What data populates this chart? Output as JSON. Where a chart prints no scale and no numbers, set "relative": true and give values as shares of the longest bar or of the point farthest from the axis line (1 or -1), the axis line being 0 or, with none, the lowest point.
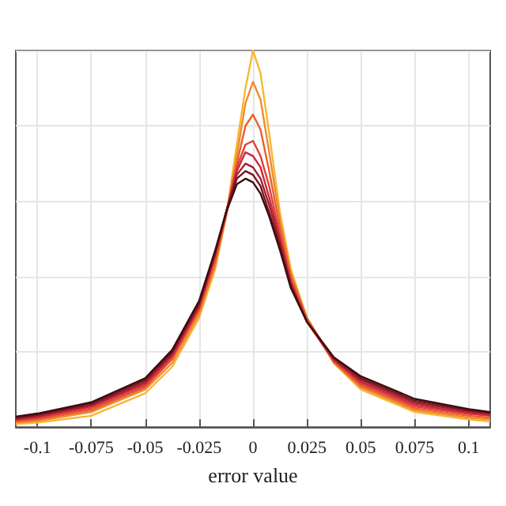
{
  "chart_data": {
    "type": "line",
    "xlabel": "error value",
    "relative": true,
    "grid": true,
    "marker": "none",
    "line_style": "solid",
    "xlim": [
      -0.11,
      0.11
    ],
    "xticks": [
      -0.1,
      -0.075,
      -0.05,
      -0.025,
      0,
      0.025,
      0.05,
      0.075,
      0.1
    ],
    "x": [
      -0.11,
      -0.1,
      -0.075,
      -0.05,
      -0.0375,
      -0.025,
      -0.0175,
      -0.0125,
      -0.0075,
      -0.0035,
      0,
      0.0035,
      0.0075,
      0.0125,
      0.0175,
      0.025,
      0.0375,
      0.05,
      0.075,
      0.1,
      0.11
    ],
    "series": [
      {
        "color": "#f7b733",
        "values": [
          0.008,
          0.012,
          0.03,
          0.09,
          0.16,
          0.29,
          0.42,
          0.56,
          0.75,
          0.9,
          1.0,
          0.94,
          0.78,
          0.57,
          0.42,
          0.29,
          0.17,
          0.1,
          0.04,
          0.02,
          0.015
        ]
      },
      {
        "color": "#f28a2e",
        "values": [
          0.012,
          0.016,
          0.04,
          0.1,
          0.17,
          0.3,
          0.43,
          0.56,
          0.72,
          0.86,
          0.917,
          0.87,
          0.73,
          0.55,
          0.41,
          0.29,
          0.17,
          0.105,
          0.045,
          0.025,
          0.02
        ]
      },
      {
        "color": "#e8602c",
        "values": [
          0.015,
          0.02,
          0.045,
          0.105,
          0.18,
          0.31,
          0.44,
          0.56,
          0.7,
          0.8,
          0.83,
          0.79,
          0.68,
          0.53,
          0.4,
          0.29,
          0.175,
          0.11,
          0.05,
          0.03,
          0.025
        ]
      },
      {
        "color": "#e0403a",
        "values": [
          0.018,
          0.024,
          0.05,
          0.11,
          0.185,
          0.315,
          0.45,
          0.57,
          0.69,
          0.75,
          0.76,
          0.72,
          0.64,
          0.51,
          0.39,
          0.28,
          0.175,
          0.115,
          0.055,
          0.035,
          0.03
        ]
      },
      {
        "color": "#c8283a",
        "values": [
          0.02,
          0.027,
          0.055,
          0.115,
          0.19,
          0.32,
          0.46,
          0.57,
          0.68,
          0.73,
          0.72,
          0.69,
          0.61,
          0.5,
          0.385,
          0.28,
          0.18,
          0.12,
          0.06,
          0.038,
          0.032
        ]
      },
      {
        "color": "#a01e30",
        "values": [
          0.022,
          0.03,
          0.058,
          0.12,
          0.195,
          0.325,
          0.46,
          0.57,
          0.67,
          0.7,
          0.69,
          0.66,
          0.59,
          0.49,
          0.38,
          0.28,
          0.18,
          0.125,
          0.065,
          0.042,
          0.035
        ]
      },
      {
        "color": "#701620",
        "values": [
          0.025,
          0.033,
          0.062,
          0.125,
          0.2,
          0.33,
          0.465,
          0.57,
          0.66,
          0.68,
          0.67,
          0.64,
          0.57,
          0.48,
          0.375,
          0.28,
          0.185,
          0.13,
          0.07,
          0.045,
          0.038
        ]
      },
      {
        "color": "#3e0c10",
        "values": [
          0.028,
          0.036,
          0.066,
          0.13,
          0.205,
          0.335,
          0.47,
          0.57,
          0.645,
          0.66,
          0.65,
          0.62,
          0.56,
          0.47,
          0.37,
          0.28,
          0.185,
          0.135,
          0.075,
          0.048,
          0.04
        ]
      }
    ]
  }
}
